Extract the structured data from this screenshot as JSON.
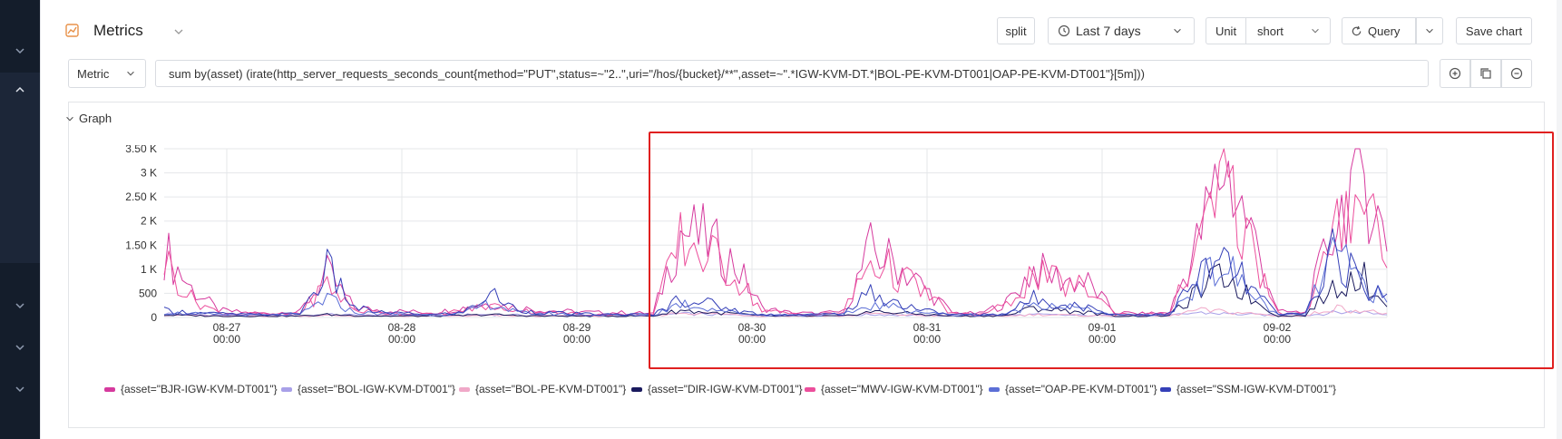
{
  "header": {
    "title": "Metrics",
    "split_label": "split",
    "time_range": "Last 7 days",
    "unit_label": "Unit",
    "unit_value": "short",
    "query_label": "Query",
    "save_label": "Save chart"
  },
  "query": {
    "type_label": "Metric",
    "expression": "sum by(asset) (irate(http_server_requests_seconds_count{method=\"PUT\",status=~\"2..\",uri=\"/hos/{bucket}/**\",asset=~\".*IGW-KVM-DT.*|BOL-PE-KVM-DT001|OAP-PE-KVM-DT001\"}[5m]))"
  },
  "graph": {
    "section_label": "Graph"
  },
  "colors": {
    "sidebar": "#141d2b",
    "accent": "#e8924a",
    "highlight": "#e02020"
  },
  "icons": [
    "metrics-icon",
    "chevron-down-icon",
    "clock-icon",
    "refresh-icon",
    "plus-circle-icon",
    "copy-icon",
    "minus-circle-icon"
  ],
  "chart_data": {
    "type": "line",
    "y_ticks": [
      "3.50 K",
      "3 K",
      "2.50 K",
      "2 K",
      "1.50 K",
      "1 K",
      "500",
      "0"
    ],
    "y_values": [
      3500,
      3000,
      2500,
      2000,
      1500,
      1000,
      500,
      0
    ],
    "ylim": [
      0,
      3500
    ],
    "x_ticks": [
      {
        "date": "08-27",
        "time": "00:00"
      },
      {
        "date": "08-28",
        "time": "00:00"
      },
      {
        "date": "08-29",
        "time": "00:00"
      },
      {
        "date": "08-30",
        "time": "00:00"
      },
      {
        "date": "08-31",
        "time": "00:00"
      },
      {
        "date": "09-01",
        "time": "00:00"
      },
      {
        "date": "09-02",
        "time": "00:00"
      }
    ],
    "grid": true,
    "legend_position": "bottom",
    "series": [
      {
        "name": "{asset=\"BJR-IGW-KVM-DT001\"}",
        "color": "#d63a9e",
        "values": [
          1400,
          600,
          150,
          100,
          80,
          120,
          900,
          200,
          150,
          120,
          100,
          200,
          300,
          200,
          150,
          120,
          100,
          100,
          80,
          1800,
          1600,
          1100,
          200,
          100,
          80,
          120,
          1400,
          1100,
          600,
          100,
          80,
          300,
          1000,
          800,
          700,
          100,
          80,
          100,
          1500,
          3200,
          1800,
          120,
          100,
          1800,
          3300,
          1500
        ]
      },
      {
        "name": "{asset=\"BOL-IGW-KVM-DT001\"}",
        "color": "#a8a0e8",
        "values": [
          80,
          60,
          50,
          40,
          40,
          40,
          60,
          50,
          40,
          40,
          40,
          50,
          60,
          50,
          40,
          40,
          40,
          40,
          40,
          80,
          60,
          50,
          40,
          40,
          40,
          40,
          60,
          50,
          40,
          40,
          40,
          40,
          60,
          50,
          40,
          40,
          40,
          40,
          100,
          80,
          60,
          40,
          40,
          100,
          120,
          60
        ]
      },
      {
        "name": "{asset=\"BOL-PE-KVM-DT001\"}",
        "color": "#f0a8c8",
        "values": [
          60,
          40,
          30,
          30,
          30,
          30,
          40,
          30,
          30,
          30,
          30,
          30,
          40,
          30,
          30,
          30,
          30,
          30,
          30,
          100,
          80,
          60,
          30,
          30,
          30,
          30,
          80,
          60,
          40,
          30,
          30,
          30,
          60,
          50,
          40,
          30,
          30,
          30,
          150,
          120,
          80,
          30,
          30,
          200,
          150,
          80
        ]
      },
      {
        "name": "{asset=\"DIR-IGW-KVM-DT001\"}",
        "color": "#1a1a5e",
        "values": [
          50,
          40,
          30,
          30,
          30,
          30,
          60,
          40,
          30,
          30,
          30,
          40,
          60,
          40,
          30,
          30,
          30,
          30,
          30,
          150,
          100,
          80,
          30,
          30,
          30,
          30,
          120,
          100,
          60,
          30,
          30,
          40,
          200,
          150,
          100,
          30,
          30,
          40,
          500,
          900,
          400,
          30,
          40,
          600,
          900,
          300
        ]
      },
      {
        "name": "{asset=\"MWV-IGW-KVM-DT001\"}",
        "color": "#ec4f9c",
        "values": [
          1200,
          400,
          100,
          80,
          60,
          100,
          700,
          150,
          100,
          80,
          60,
          150,
          250,
          150,
          100,
          80,
          60,
          60,
          60,
          1600,
          1300,
          900,
          150,
          80,
          60,
          100,
          1200,
          900,
          500,
          80,
          60,
          250,
          900,
          700,
          600,
          80,
          60,
          80,
          1300,
          2800,
          1500,
          100,
          80,
          1500,
          3000,
          1200
        ]
      },
      {
        "name": "{asset=\"OAP-PE-KVM-DT001\"}",
        "color": "#5c6fd6",
        "values": [
          100,
          80,
          60,
          50,
          50,
          60,
          400,
          100,
          80,
          60,
          50,
          80,
          300,
          100,
          80,
          60,
          50,
          50,
          50,
          300,
          200,
          100,
          50,
          50,
          50,
          60,
          250,
          200,
          100,
          50,
          50,
          60,
          300,
          250,
          150,
          50,
          50,
          60,
          700,
          1100,
          500,
          50,
          60,
          1300,
          800,
          300
        ]
      },
      {
        "name": "{asset=\"SSM-IGW-KVM-DT001\"}",
        "color": "#3540b8",
        "values": [
          150,
          100,
          80,
          60,
          60,
          80,
          1000,
          200,
          100,
          80,
          60,
          100,
          500,
          150,
          100,
          80,
          60,
          60,
          60,
          400,
          300,
          150,
          60,
          60,
          60,
          80,
          500,
          300,
          150,
          60,
          60,
          80,
          400,
          300,
          200,
          60,
          60,
          80,
          800,
          1200,
          600,
          60,
          80,
          1400,
          700,
          400
        ]
      }
    ]
  }
}
